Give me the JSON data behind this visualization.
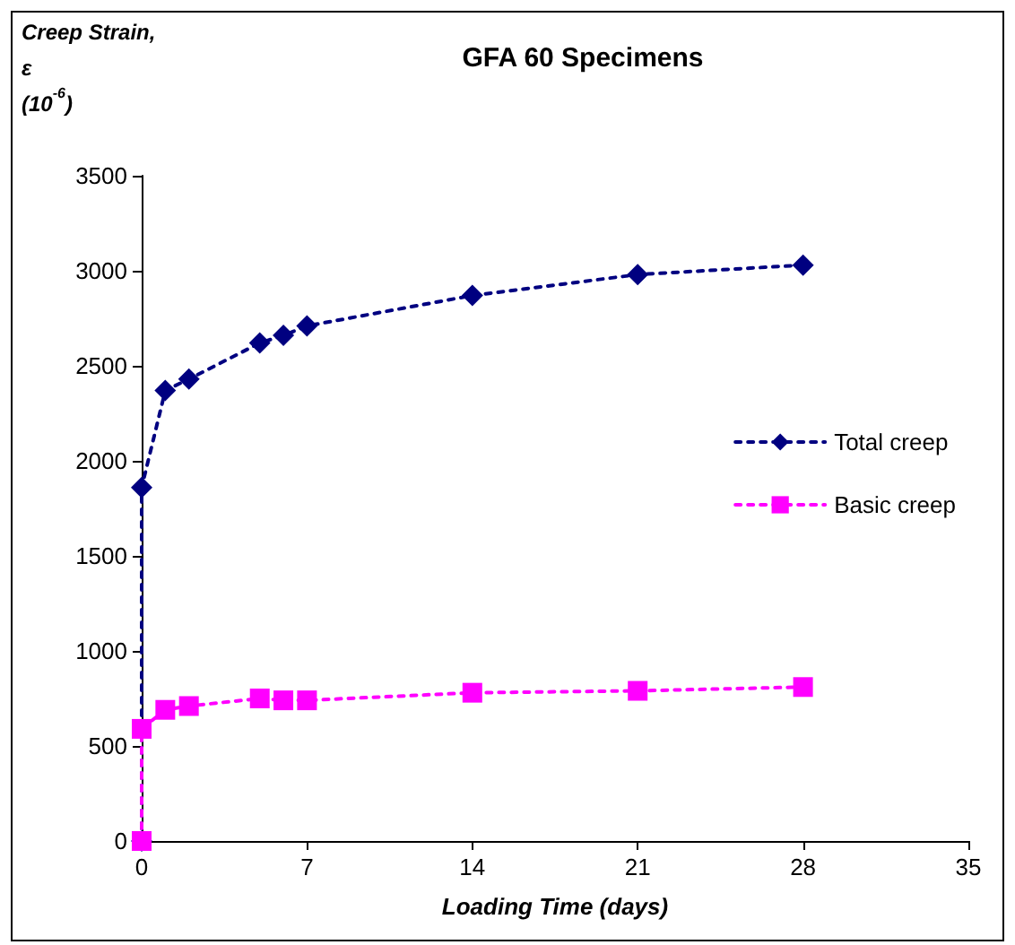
{
  "chart_data": {
    "type": "line",
    "title": "GFA 60 Specimens",
    "xlabel": "Loading Time (days)",
    "ylabel": "Creep Strain,\nε\n(10$^{-6}$)",
    "series": [
      {
        "name": "Total creep",
        "color": "#000080",
        "marker": "diamond",
        "x": [
          0,
          0,
          1,
          2,
          5,
          6,
          7,
          14,
          21,
          28
        ],
        "values": [
          0,
          1860,
          2370,
          2430,
          2620,
          2660,
          2710,
          2870,
          2980,
          3030
        ]
      },
      {
        "name": "Basic creep",
        "color": "#ff00ff",
        "marker": "square",
        "x": [
          0,
          0,
          1,
          2,
          5,
          6,
          7,
          14,
          21,
          28
        ],
        "values": [
          0,
          590,
          690,
          710,
          750,
          740,
          740,
          780,
          790,
          810
        ]
      }
    ],
    "xlim": [
      0,
      35
    ],
    "xticks": [
      0,
      7,
      14,
      21,
      28,
      35
    ],
    "ylim": [
      0,
      3500
    ],
    "yticks": [
      0,
      500,
      1000,
      1500,
      2000,
      2500,
      3000,
      3500
    ],
    "grid": false,
    "legend": "right",
    "line_style": "dotted"
  }
}
